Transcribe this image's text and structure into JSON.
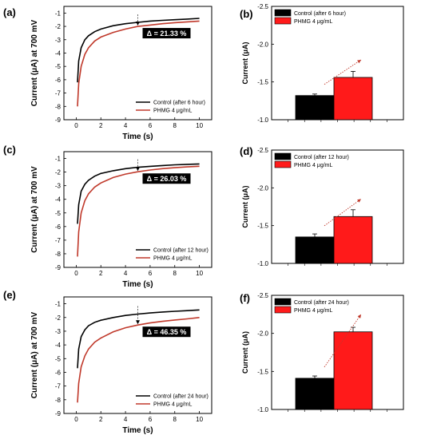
{
  "colors": {
    "control": "#000000",
    "treated": "#c0392b",
    "bar_treated": "#ff1a1a",
    "bar_control": "#000000",
    "anno_bg": "#000000"
  },
  "chart_data": [
    {
      "panel": "(a)",
      "type": "line",
      "xlabel": "Time (s)",
      "ylabel": "Current (μA) at 700 mV",
      "xlim": [
        -1,
        11
      ],
      "ylim": [
        -9,
        -0.5
      ],
      "xticks": [
        "0",
        "2",
        "4",
        "6",
        "8",
        "10"
      ],
      "yticks": [
        "-1",
        "-2",
        "-3",
        "-4",
        "-5",
        "-6",
        "-7",
        "-8",
        "-9"
      ],
      "annotation": "Δ = 21.33 %",
      "legend": "bottom-right",
      "series": [
        {
          "name": "Control (after 6 hour)",
          "color": "#000000",
          "x": [
            0.1,
            0.2,
            0.4,
            0.7,
            1,
            1.5,
            2,
            3,
            4,
            5,
            6,
            7,
            8,
            9,
            10
          ],
          "y": [
            -6.2,
            -4.6,
            -3.6,
            -3.0,
            -2.7,
            -2.4,
            -2.2,
            -1.95,
            -1.8,
            -1.7,
            -1.6,
            -1.55,
            -1.5,
            -1.45,
            -1.4
          ]
        },
        {
          "name": "PHMG 4 μg/mL",
          "color": "#c0392b",
          "x": [
            0.1,
            0.2,
            0.4,
            0.7,
            1,
            1.5,
            2,
            3,
            4,
            5,
            6,
            7,
            8,
            9,
            10
          ],
          "y": [
            -8.0,
            -6.3,
            -5.0,
            -4.1,
            -3.6,
            -3.1,
            -2.8,
            -2.45,
            -2.2,
            -2.0,
            -1.9,
            -1.8,
            -1.72,
            -1.66,
            -1.6
          ]
        }
      ]
    },
    {
      "panel": "(b)",
      "type": "bar",
      "ylabel": "Current (μA)",
      "ylim": [
        -1.0,
        -2.5
      ],
      "yticks": [
        "-2.5",
        "-2.0",
        "-1.5",
        "-1.0"
      ],
      "legend": "top-left",
      "series": [
        {
          "name": "Control (after 6 hour)",
          "value": -1.32,
          "error": 0.02,
          "color": "#000000"
        },
        {
          "name": "PHMG 4 μg/mL",
          "value": -1.56,
          "error": 0.08,
          "color": "#ff1a1a"
        }
      ]
    },
    {
      "panel": "(c)",
      "type": "line",
      "xlabel": "Time (s)",
      "ylabel": "Current (μA) at 700 mV",
      "xlim": [
        -1,
        11
      ],
      "ylim": [
        -9,
        -0.5
      ],
      "xticks": [
        "0",
        "2",
        "4",
        "6",
        "8",
        "10"
      ],
      "yticks": [
        "-1",
        "-2",
        "-3",
        "-4",
        "-5",
        "-6",
        "-7",
        "-8",
        "-9"
      ],
      "annotation": "Δ = 26.03 %",
      "legend": "bottom-right",
      "series": [
        {
          "name": "Control (after 12 hour)",
          "color": "#000000",
          "x": [
            0.1,
            0.2,
            0.4,
            0.7,
            1,
            1.5,
            2,
            3,
            4,
            5,
            6,
            7,
            8,
            9,
            10
          ],
          "y": [
            -5.8,
            -4.4,
            -3.4,
            -2.9,
            -2.6,
            -2.3,
            -2.1,
            -1.9,
            -1.75,
            -1.65,
            -1.58,
            -1.52,
            -1.47,
            -1.43,
            -1.4
          ]
        },
        {
          "name": "PHMG 4 μg/mL",
          "color": "#c0392b",
          "x": [
            0.1,
            0.2,
            0.4,
            0.7,
            1,
            1.5,
            2,
            3,
            4,
            5,
            6,
            7,
            8,
            9,
            10
          ],
          "y": [
            -8.2,
            -6.4,
            -5.0,
            -4.1,
            -3.6,
            -3.1,
            -2.8,
            -2.4,
            -2.15,
            -1.98,
            -1.85,
            -1.75,
            -1.68,
            -1.62,
            -1.57
          ]
        }
      ]
    },
    {
      "panel": "(d)",
      "type": "bar",
      "ylabel": "Current (μA)",
      "ylim": [
        -1.0,
        -2.5
      ],
      "yticks": [
        "-2.5",
        "-2.0",
        "-1.5",
        "-1.0"
      ],
      "legend": "top-left",
      "series": [
        {
          "name": "Control (after 12 hour)",
          "value": -1.35,
          "error": 0.04,
          "color": "#000000"
        },
        {
          "name": "PHMG 4 μg/mL",
          "value": -1.62,
          "error": 0.09,
          "color": "#ff1a1a"
        }
      ]
    },
    {
      "panel": "(e)",
      "type": "line",
      "xlabel": "Time (s)",
      "ylabel": "Current (μA) at 700 mV",
      "xlim": [
        -1,
        11
      ],
      "ylim": [
        -9,
        -0.5
      ],
      "xticks": [
        "0",
        "2",
        "4",
        "6",
        "8",
        "10"
      ],
      "yticks": [
        "-1",
        "-2",
        "-3",
        "-4",
        "-5",
        "-6",
        "-7",
        "-8",
        "-9"
      ],
      "annotation": "Δ = 46.35 %",
      "legend": "bottom-right",
      "series": [
        {
          "name": "Control (after 24 hour)",
          "color": "#000000",
          "x": [
            0.1,
            0.2,
            0.4,
            0.7,
            1,
            1.5,
            2,
            3,
            4,
            5,
            6,
            7,
            8,
            9,
            10
          ],
          "y": [
            -5.7,
            -4.3,
            -3.4,
            -2.9,
            -2.6,
            -2.35,
            -2.2,
            -2.0,
            -1.85,
            -1.75,
            -1.67,
            -1.6,
            -1.55,
            -1.5,
            -1.45
          ]
        },
        {
          "name": "PHMG 4 μg/mL",
          "color": "#c0392b",
          "x": [
            0.1,
            0.2,
            0.4,
            0.7,
            1,
            1.5,
            2,
            3,
            4,
            5,
            6,
            7,
            8,
            9,
            10
          ],
          "y": [
            -8.2,
            -6.8,
            -5.6,
            -4.8,
            -4.3,
            -3.8,
            -3.5,
            -3.05,
            -2.75,
            -2.55,
            -2.4,
            -2.28,
            -2.18,
            -2.1,
            -2.0
          ]
        }
      ]
    },
    {
      "panel": "(f)",
      "type": "bar",
      "ylabel": "Current (μA)",
      "ylim": [
        -1.0,
        -2.5
      ],
      "yticks": [
        "-2.5",
        "-2.0",
        "-1.5",
        "-1.0"
      ],
      "legend": "top-left",
      "series": [
        {
          "name": "Control (after 24 hour)",
          "value": -1.41,
          "error": 0.03,
          "color": "#000000"
        },
        {
          "name": "PHMG 4 μg/mL",
          "value": -2.02,
          "error": 0.06,
          "color": "#ff1a1a"
        }
      ]
    }
  ]
}
